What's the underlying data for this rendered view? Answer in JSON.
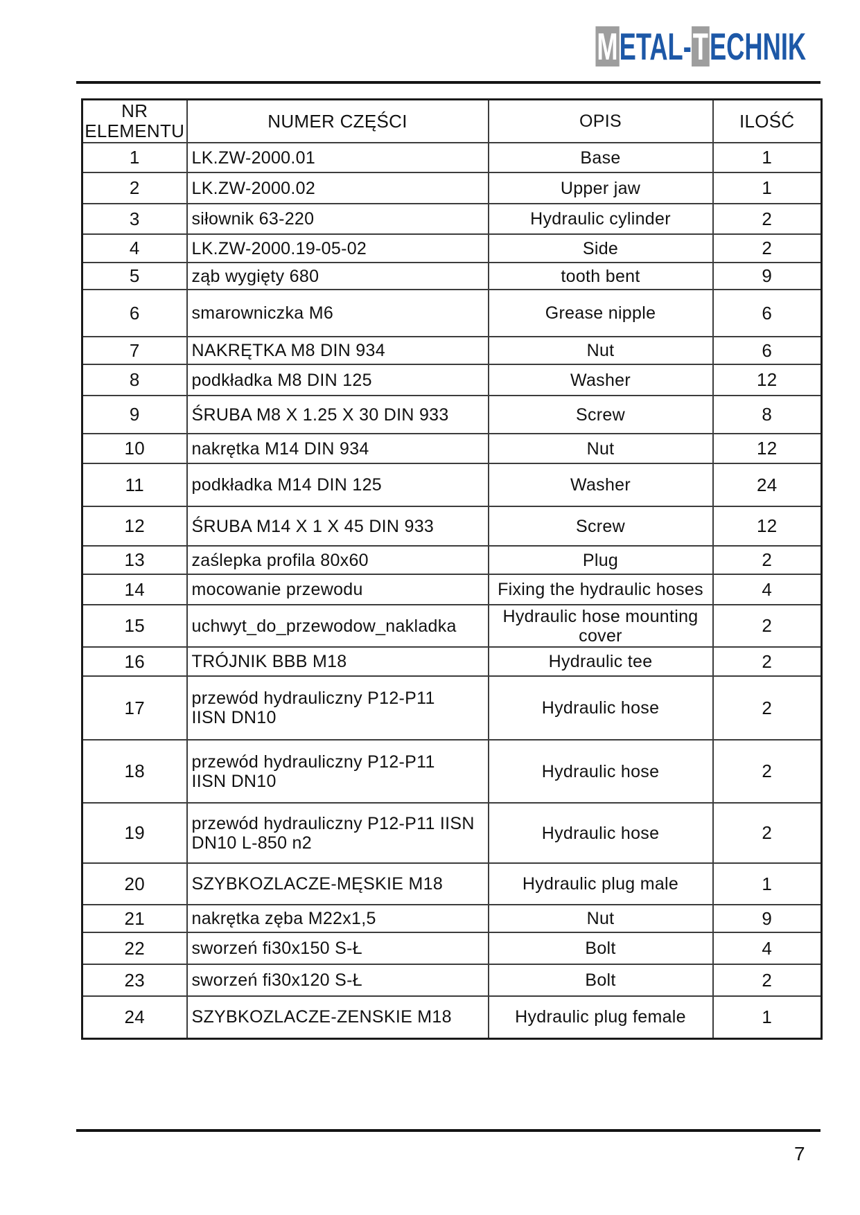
{
  "logo": {
    "segments": [
      {
        "text": "M",
        "style": "block"
      },
      {
        "text": "ETAL-",
        "style": "blue"
      },
      {
        "text": "T",
        "style": "block"
      },
      {
        "text": "ECHNIK",
        "style": "blue"
      }
    ],
    "colors": {
      "blue": "#1d58a7",
      "gray": "#9e9e9e",
      "letter_white": "#ffffff"
    }
  },
  "table": {
    "headers": {
      "nr": "NR\nELEMENTU",
      "numer": "NUMER CZĘŚCI",
      "opis": "OPIS",
      "ilosc": "ILOŚĆ"
    },
    "rows": [
      {
        "nr": "1",
        "numer": "LK.ZW-2000.01",
        "opis": "Base",
        "ilosc": "1"
      },
      {
        "nr": "2",
        "numer": "LK.ZW-2000.02",
        "opis": "Upper jaw",
        "ilosc": "1"
      },
      {
        "nr": "3",
        "numer": "siłownik 63-220",
        "opis": "Hydraulic cylinder",
        "ilosc": "2"
      },
      {
        "nr": "4",
        "numer": "LK.ZW-2000.19-05-02",
        "opis": "Side",
        "ilosc": "2"
      },
      {
        "nr": "5",
        "numer": "ząb wygięty 680",
        "opis": "tooth bent",
        "ilosc": "9"
      },
      {
        "nr": "6",
        "numer": "smarowniczka M6",
        "opis": "Grease nipple",
        "ilosc": "6"
      },
      {
        "nr": "7",
        "numer": "NAKRĘTKA M8 DIN 934",
        "opis": "Nut",
        "ilosc": "6"
      },
      {
        "nr": "8",
        "numer": "podkładka M8 DIN 125",
        "opis": "Washer",
        "ilosc": "12"
      },
      {
        "nr": "9",
        "numer": "ŚRUBA M8 X 1.25 X 30 DIN 933",
        "opis": "Screw",
        "ilosc": "8"
      },
      {
        "nr": "10",
        "numer": "nakrętka M14 DIN 934",
        "opis": "Nut",
        "ilosc": "12"
      },
      {
        "nr": "11",
        "numer": "podkładka M14 DIN 125",
        "opis": "Washer",
        "ilosc": "24"
      },
      {
        "nr": "12",
        "numer": "ŚRUBA M14 X 1 X 45 DIN 933",
        "opis": "Screw",
        "ilosc": "12"
      },
      {
        "nr": "13",
        "numer": "zaślepka profila 80x60",
        "opis": "Plug",
        "ilosc": "2"
      },
      {
        "nr": "14",
        "numer": "mocowanie przewodu",
        "opis": "Fixing the hydraulic hoses",
        "ilosc": "4"
      },
      {
        "nr": "15",
        "numer": "uchwyt_do_przewodow_nakladka",
        "opis": "Hydraulic hose mounting cover",
        "ilosc": "2"
      },
      {
        "nr": "16",
        "numer": "TRÓJNIK BBB M18",
        "opis": "Hydraulic tee",
        "ilosc": "2"
      },
      {
        "nr": "17",
        "numer": "przewód hydrauliczny P12-P11\nIISN DN10",
        "opis": "Hydraulic hose",
        "ilosc": "2"
      },
      {
        "nr": "18",
        "numer": "przewód hydrauliczny P12-P11\nIISN DN10",
        "opis": "Hydraulic hose",
        "ilosc": "2"
      },
      {
        "nr": "19",
        "numer": "przewód hydrauliczny P12-P11 IISN\nDN10 L-850 n2",
        "opis": "Hydraulic hose",
        "ilosc": "2"
      },
      {
        "nr": "20",
        "numer": "SZYBKOZLACZE-MĘSKIE M18",
        "opis": "Hydraulic plug male",
        "ilosc": "1"
      },
      {
        "nr": "21",
        "numer": "nakrętka zęba M22x1,5",
        "opis": "Nut",
        "ilosc": "9"
      },
      {
        "nr": "22",
        "numer": "sworzeń fi30x150 S-Ł",
        "opis": "Bolt",
        "ilosc": "4"
      },
      {
        "nr": "23",
        "numer": "sworzeń fi30x120 S-Ł",
        "opis": "Bolt",
        "ilosc": "2"
      },
      {
        "nr": "24",
        "numer": "SZYBKOZLACZE-ZENSKIE M18",
        "opis": "Hydraulic plug female",
        "ilosc": "1"
      }
    ]
  },
  "footer": {
    "page_number": "7"
  }
}
